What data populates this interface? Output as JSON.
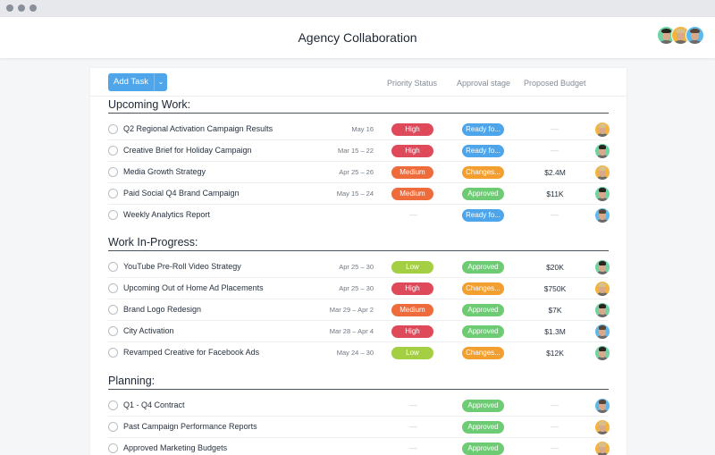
{
  "window": {
    "controls": [
      "close",
      "minimize",
      "maximize"
    ],
    "control_color": "#8a9099"
  },
  "header": {
    "title": "Agency Collaboration",
    "members": [
      {
        "name": "member-1",
        "bg": "#6fd3a5",
        "hair": "#2a2420"
      },
      {
        "name": "member-2",
        "bg": "#f2b43c",
        "hair": "#d9c08a"
      },
      {
        "name": "member-3",
        "bg": "#5fb8ea",
        "hair": "#5a4636"
      }
    ]
  },
  "toolbar": {
    "add_task_label": "Add Task",
    "dropdown_icon": "chevron-down-icon",
    "columns": [
      "Priority Status",
      "Approval stage",
      "Proposed Budget"
    ]
  },
  "colors": {
    "accent": "#4ea5ea",
    "high": "#de4a5a",
    "medium": "#ee6b3c",
    "low": "#a4cf43",
    "ready": "#4ea5ea",
    "changes": "#f39f30",
    "approved": "#6dcc73"
  },
  "sections": [
    {
      "title": "Upcoming Work:",
      "tasks": [
        {
          "name": "Q2 Regional Activation Campaign Results",
          "date": "May 16",
          "priority": "High",
          "approval": "Ready fo...",
          "budget": "—",
          "assignee": "member-2"
        },
        {
          "name": "Creative Brief for Holiday Campaign",
          "date": "Mar 15 – 22",
          "priority": "High",
          "approval": "Ready fo...",
          "budget": "—",
          "assignee": "member-1"
        },
        {
          "name": "Media Growth Strategy",
          "date": "Apr 25 – 26",
          "priority": "Medium",
          "approval": "Changes...",
          "budget": "$2.4M",
          "assignee": "member-2"
        },
        {
          "name": "Paid Social Q4 Brand Campaign",
          "date": "May 15 – 24",
          "priority": "Medium",
          "approval": "Approved",
          "budget": "$11K",
          "assignee": "member-1"
        },
        {
          "name": "Weekly Analytics Report",
          "date": "",
          "priority": "—",
          "approval": "Ready fo...",
          "budget": "—",
          "assignee": "member-3"
        }
      ]
    },
    {
      "title": "Work In-Progress:",
      "tasks": [
        {
          "name": "YouTube Pre-Roll Video Strategy",
          "date": "Apr 25 – 30",
          "priority": "Low",
          "approval": "Approved",
          "budget": "$20K",
          "assignee": "member-1"
        },
        {
          "name": "Upcoming Out of Home Ad Placements",
          "date": "Apr 25 – 30",
          "priority": "High",
          "approval": "Changes...",
          "budget": "$750K",
          "assignee": "member-2"
        },
        {
          "name": "Brand Logo Redesign",
          "date": "Mar 29 – Apr 2",
          "priority": "Medium",
          "approval": "Approved",
          "budget": "$7K",
          "assignee": "member-1"
        },
        {
          "name": "City Activation",
          "date": "Mar 28 – Apr 4",
          "priority": "High",
          "approval": "Approved",
          "budget": "$1.3M",
          "assignee": "member-3"
        },
        {
          "name": "Revamped Creative for Facebook Ads",
          "date": "May 24 – 30",
          "priority": "Low",
          "approval": "Changes...",
          "budget": "$12K",
          "assignee": "member-1"
        }
      ]
    },
    {
      "title": "Planning:",
      "tasks": [
        {
          "name": "Q1 - Q4 Contract",
          "date": "",
          "priority": "—",
          "approval": "Approved",
          "budget": "—",
          "assignee": "member-3"
        },
        {
          "name": "Past Campaign Performance Reports",
          "date": "",
          "priority": "—",
          "approval": "Approved",
          "budget": "—",
          "assignee": "member-2"
        },
        {
          "name": "Approved Marketing Budgets",
          "date": "",
          "priority": "—",
          "approval": "Approved",
          "budget": "—",
          "assignee": "member-2"
        }
      ]
    }
  ]
}
